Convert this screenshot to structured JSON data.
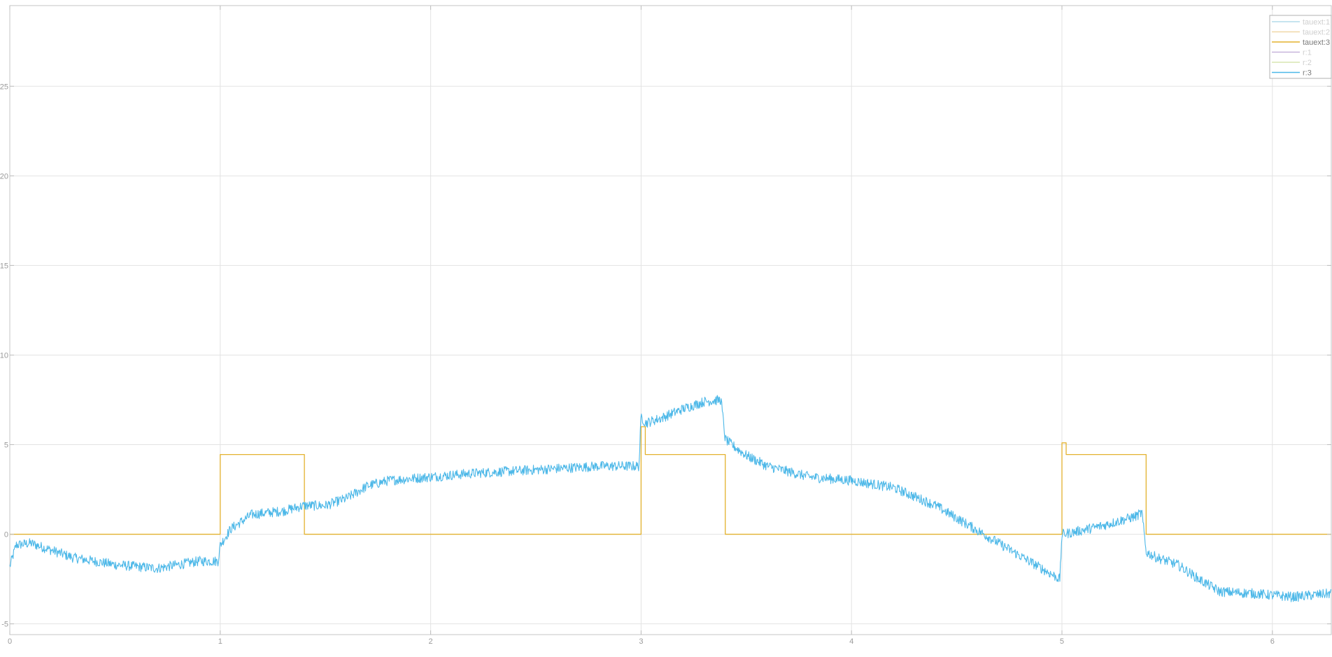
{
  "chart_data": {
    "type": "line",
    "title": "",
    "xlabel": "",
    "ylabel": "",
    "xlim": [
      0,
      6.28
    ],
    "ylim": [
      -5.6,
      29.5
    ],
    "x_ticks": [
      0,
      1,
      2,
      3,
      4,
      5,
      6
    ],
    "x_tick_labels": [
      "0",
      "1",
      "2",
      "3",
      "4",
      "5",
      "6"
    ],
    "y_ticks": [
      -5,
      0,
      5,
      10,
      15,
      20,
      25
    ],
    "y_tick_labels": [
      "-5",
      "0",
      "5",
      "10",
      "15",
      "20",
      "25"
    ],
    "grid": true,
    "legend_position": "top-right",
    "series": [
      {
        "name": "tauext:1",
        "color": "#b4dcea",
        "legend_only": true,
        "x": [],
        "y": []
      },
      {
        "name": "tauext:2",
        "color": "#f0d8a8",
        "legend_only": true,
        "x": [],
        "y": []
      },
      {
        "name": "tauext:3",
        "color": "#e3b22f",
        "step": true,
        "x": [
          0,
          1.0,
          1.0,
          1.4,
          1.4,
          3.0,
          3.0,
          3.02,
          3.02,
          3.4,
          3.4,
          5.0,
          5.0,
          5.02,
          5.02,
          5.4,
          5.4,
          6.28
        ],
        "y": [
          0,
          0,
          4.45,
          4.45,
          0,
          0,
          6.0,
          6.0,
          4.45,
          4.45,
          0,
          0,
          5.1,
          5.1,
          4.45,
          4.45,
          0,
          0
        ]
      },
      {
        "name": "r:1",
        "color": "#c8b4dc",
        "legend_only": true,
        "x": [],
        "y": []
      },
      {
        "name": "r:2",
        "color": "#d8e6b0",
        "legend_only": true,
        "x": [],
        "y": []
      },
      {
        "name": "r:3",
        "color": "#4db8e8",
        "noisy": true,
        "noise_amplitude": 0.28,
        "x": [
          0,
          0.03,
          0.1,
          0.3,
          0.5,
          0.7,
          0.9,
          0.99,
          1.0,
          1.05,
          1.15,
          1.3,
          1.4,
          1.5,
          1.6,
          1.7,
          1.8,
          2.0,
          2.2,
          2.5,
          2.8,
          2.99,
          3.0,
          3.02,
          3.1,
          3.2,
          3.3,
          3.38,
          3.4,
          3.43,
          3.5,
          3.6,
          3.8,
          4.0,
          4.2,
          4.4,
          4.6,
          4.8,
          4.99,
          5.0,
          5.05,
          5.2,
          5.35,
          5.38,
          5.4,
          5.45,
          5.55,
          5.65,
          5.75,
          5.9,
          6.1,
          6.28
        ],
        "y": [
          -1.8,
          -0.6,
          -0.5,
          -1.3,
          -1.7,
          -1.9,
          -1.5,
          -1.5,
          -0.6,
          0.3,
          1.1,
          1.3,
          1.6,
          1.6,
          2.0,
          2.7,
          3.0,
          3.2,
          3.4,
          3.6,
          3.8,
          3.8,
          6.6,
          6.2,
          6.5,
          7.0,
          7.4,
          7.5,
          5.3,
          5.0,
          4.4,
          3.8,
          3.2,
          3.0,
          2.6,
          1.6,
          0.2,
          -1.2,
          -2.5,
          0.0,
          0.1,
          0.5,
          1.0,
          1.2,
          -1.0,
          -1.3,
          -1.7,
          -2.5,
          -3.2,
          -3.3,
          -3.5,
          -3.3
        ]
      }
    ]
  }
}
